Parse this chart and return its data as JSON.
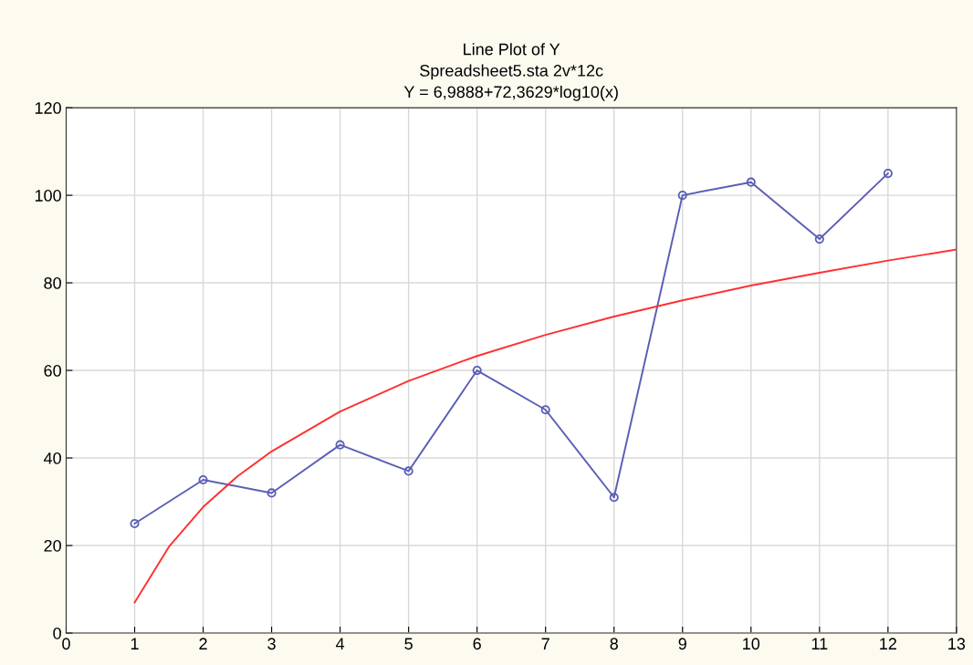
{
  "chart_data": {
    "type": "line",
    "title": "Line Plot of Y\nSpreadsheet5.sta 2v*12c\nY = 6,9888+72,3629*log10(x)",
    "series": [
      {
        "color": "#5a5fb4",
        "marker": "circle",
        "x": [
          1,
          2,
          3,
          4,
          5,
          6,
          7,
          8,
          9,
          10,
          11,
          12
        ],
        "values": [
          25,
          35,
          32,
          43,
          37,
          60,
          51,
          31,
          100,
          103,
          90,
          105
        ]
      },
      {
        "color": "#ff3030",
        "marker": "none",
        "x": [
          1,
          1.5,
          2,
          2.5,
          3,
          4,
          5,
          6,
          7,
          8,
          9,
          10,
          11,
          12,
          13
        ],
        "values": [
          7,
          19.7,
          28.8,
          35.8,
          41.5,
          50.6,
          57.6,
          63.3,
          68.1,
          72.3,
          76,
          79.4,
          82.3,
          85.1,
          87.6
        ]
      }
    ],
    "xlim": [
      0,
      13
    ],
    "xticks": [
      0,
      1,
      2,
      3,
      4,
      5,
      6,
      7,
      8,
      9,
      10,
      11,
      12,
      13
    ],
    "ylim": [
      0,
      120
    ],
    "yticks": [
      0,
      20,
      40,
      60,
      80,
      100,
      120
    ],
    "grid": true
  }
}
